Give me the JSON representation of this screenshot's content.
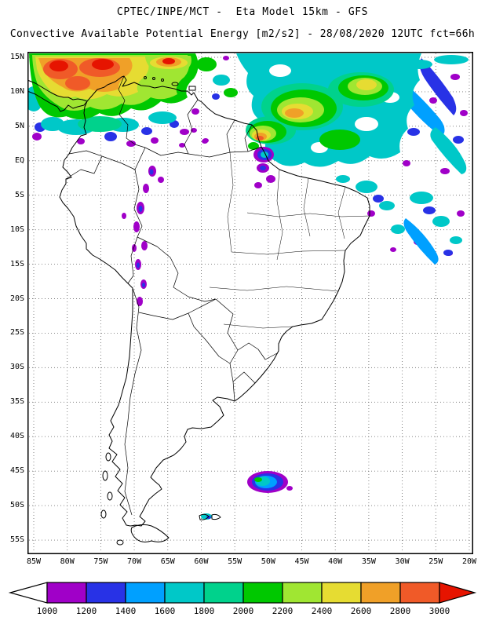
{
  "header": {
    "line1": "CPTEC/INPE/MCT -  Eta Model 15km - GFS",
    "line2": "Convective Available Potential Energy [m2/s2] - 28/08/2020 12UTC fct=66h"
  },
  "product": {
    "center": "CPTEC/INPE/MCT",
    "model": "Eta Model 15km",
    "boundary_model": "GFS",
    "variable": "Convective Available Potential Energy",
    "units": "m2/s2",
    "date": "28/08/2020",
    "cycle": "12UTC",
    "forecast": "fct=66h"
  },
  "map": {
    "lat_labels": [
      "15N",
      "10N",
      "5N",
      "EQ",
      "5S",
      "10S",
      "15S",
      "20S",
      "25S",
      "30S",
      "35S",
      "40S",
      "45S",
      "50S",
      "55S"
    ],
    "lon_labels": [
      "85W",
      "80W",
      "75W",
      "70W",
      "65W",
      "60W",
      "55W",
      "50W",
      "45W",
      "40W",
      "35W",
      "30W",
      "25W",
      "20W"
    ]
  },
  "colorbar": {
    "tick_labels": [
      "1000",
      "1200",
      "1400",
      "1600",
      "1800",
      "2000",
      "2200",
      "2400",
      "2600",
      "2800",
      "3000"
    ],
    "segment_levels": [
      "1000",
      "1200",
      "1400",
      "1600",
      "1800",
      "2000",
      "2200",
      "2400",
      "2600",
      "2800"
    ],
    "under_arrow_color": "#ffffff",
    "over_arrow_level": "3000",
    "level_colors": {
      "0": "#ffffff",
      "1000": "#a000c8",
      "1200": "#2832e6",
      "1400": "#00a0ff",
      "1600": "#00c8c8",
      "1800": "#00d28c",
      "2000": "#00c800",
      "2200": "#a0e632",
      "2400": "#e6dc32",
      "2600": "#f0a028",
      "2800": "#f05a28",
      "3000": "#e61400"
    }
  }
}
